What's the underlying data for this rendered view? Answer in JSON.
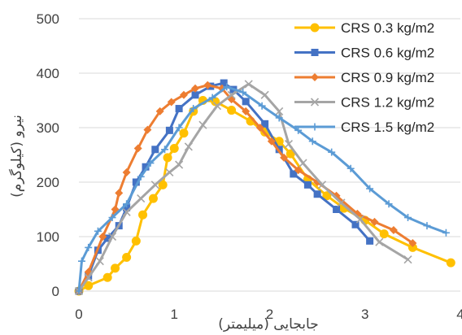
{
  "chart_data": {
    "type": "line",
    "title": "",
    "xlabel": "جابجایی (میلیمتر)",
    "ylabel": "نیرو (کیلوگرم)",
    "xlim": [
      0,
      4
    ],
    "ylim": [
      0,
      500
    ],
    "xticks": [
      0,
      1,
      2,
      3,
      4
    ],
    "yticks": [
      0,
      100,
      200,
      300,
      400,
      500
    ],
    "grid": "horizontal",
    "legend_position": "top-right",
    "series": [
      {
        "name": "CRS 0.3 kg/m2",
        "color": "#FFC000",
        "marker": "circle",
        "points": [
          [
            0,
            0
          ],
          [
            0.1,
            10
          ],
          [
            0.3,
            25
          ],
          [
            0.38,
            42
          ],
          [
            0.5,
            62
          ],
          [
            0.6,
            92
          ],
          [
            0.67,
            140
          ],
          [
            0.78,
            170
          ],
          [
            0.88,
            195
          ],
          [
            0.93,
            245
          ],
          [
            1.0,
            262
          ],
          [
            1.1,
            290
          ],
          [
            1.2,
            330
          ],
          [
            1.3,
            350
          ],
          [
            1.43,
            348
          ],
          [
            1.6,
            332
          ],
          [
            1.8,
            312
          ],
          [
            1.95,
            292
          ],
          [
            2.1,
            275
          ],
          [
            2.22,
            252
          ],
          [
            2.4,
            205
          ],
          [
            2.6,
            175
          ],
          [
            2.78,
            152
          ],
          [
            3.0,
            130
          ],
          [
            3.2,
            105
          ],
          [
            3.5,
            80
          ],
          [
            3.9,
            52
          ]
        ]
      },
      {
        "name": "CRS 0.6 kg/m2",
        "color": "#4472C4",
        "marker": "square",
        "points": [
          [
            0,
            0
          ],
          [
            0.1,
            28
          ],
          [
            0.2,
            75
          ],
          [
            0.3,
            97
          ],
          [
            0.42,
            120
          ],
          [
            0.5,
            153
          ],
          [
            0.6,
            200
          ],
          [
            0.7,
            228
          ],
          [
            0.8,
            260
          ],
          [
            0.95,
            295
          ],
          [
            1.05,
            335
          ],
          [
            1.22,
            360
          ],
          [
            1.38,
            376
          ],
          [
            1.52,
            382
          ],
          [
            1.62,
            370
          ],
          [
            1.75,
            348
          ],
          [
            1.95,
            307
          ],
          [
            2.1,
            260
          ],
          [
            2.25,
            215
          ],
          [
            2.4,
            195
          ],
          [
            2.5,
            178
          ],
          [
            2.7,
            150
          ],
          [
            2.9,
            122
          ],
          [
            3.05,
            92
          ]
        ]
      },
      {
        "name": "CRS 0.9 kg/m2",
        "color": "#ED7D31",
        "marker": "diamond",
        "points": [
          [
            0,
            0
          ],
          [
            0.1,
            35
          ],
          [
            0.25,
            100
          ],
          [
            0.38,
            150
          ],
          [
            0.42,
            180
          ],
          [
            0.5,
            218
          ],
          [
            0.62,
            262
          ],
          [
            0.72,
            296
          ],
          [
            0.85,
            330
          ],
          [
            0.97,
            347
          ],
          [
            1.1,
            360
          ],
          [
            1.22,
            372
          ],
          [
            1.35,
            378
          ],
          [
            1.5,
            372
          ],
          [
            1.6,
            352
          ],
          [
            1.75,
            330
          ],
          [
            1.9,
            300
          ],
          [
            2.02,
            275
          ],
          [
            2.15,
            245
          ],
          [
            2.3,
            222
          ],
          [
            2.5,
            200
          ],
          [
            2.7,
            175
          ],
          [
            2.92,
            142
          ],
          [
            3.1,
            127
          ],
          [
            3.3,
            112
          ],
          [
            3.5,
            88
          ]
        ]
      },
      {
        "name": "CRS 1.2 kg/m2",
        "color": "#A5A5A5",
        "marker": "x",
        "points": [
          [
            0,
            0
          ],
          [
            0.1,
            25
          ],
          [
            0.22,
            55
          ],
          [
            0.35,
            100
          ],
          [
            0.5,
            145
          ],
          [
            0.65,
            170
          ],
          [
            0.8,
            195
          ],
          [
            0.95,
            218
          ],
          [
            1.05,
            232
          ],
          [
            1.15,
            265
          ],
          [
            1.3,
            305
          ],
          [
            1.45,
            340
          ],
          [
            1.6,
            360
          ],
          [
            1.78,
            380
          ],
          [
            1.95,
            360
          ],
          [
            2.1,
            330
          ],
          [
            2.2,
            270
          ],
          [
            2.35,
            235
          ],
          [
            2.55,
            195
          ],
          [
            2.75,
            162
          ],
          [
            2.95,
            132
          ],
          [
            3.15,
            90
          ],
          [
            3.45,
            58
          ]
        ]
      },
      {
        "name": "CRS 1.5 kg/m2",
        "color": "#5B9BD5",
        "marker": "plus",
        "points": [
          [
            0,
            0
          ],
          [
            0.03,
            55
          ],
          [
            0.1,
            80
          ],
          [
            0.2,
            110
          ],
          [
            0.35,
            135
          ],
          [
            0.5,
            160
          ],
          [
            0.65,
            210
          ],
          [
            0.75,
            235
          ],
          [
            0.9,
            260
          ],
          [
            1.05,
            300
          ],
          [
            1.2,
            335
          ],
          [
            1.4,
            355
          ],
          [
            1.55,
            375
          ],
          [
            1.72,
            365
          ],
          [
            1.92,
            340
          ],
          [
            2.1,
            318
          ],
          [
            2.3,
            295
          ],
          [
            2.45,
            275
          ],
          [
            2.65,
            255
          ],
          [
            2.85,
            225
          ],
          [
            3.05,
            188
          ],
          [
            3.25,
            160
          ],
          [
            3.45,
            135
          ],
          [
            3.65,
            120
          ],
          [
            3.85,
            107
          ]
        ]
      }
    ]
  }
}
